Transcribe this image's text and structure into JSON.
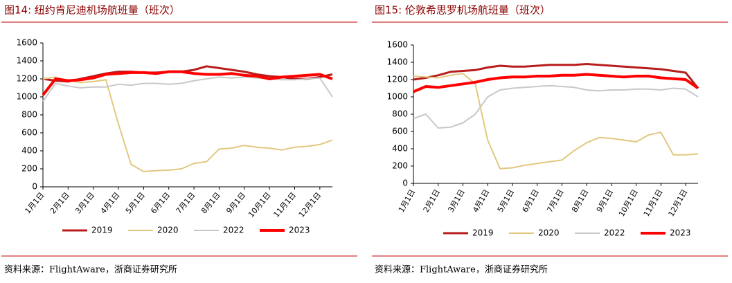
{
  "chart_data": [
    {
      "type": "line",
      "title": "图14:  纽约肯尼迪机场航班量（班次）",
      "source": "资料来源：FlightAware，浙商证券研究所",
      "categories": [
        "1月1日",
        null,
        "2月1日",
        null,
        "3月1日",
        null,
        "4月1日",
        null,
        "5月1日",
        null,
        "6月1日",
        null,
        "7月1日",
        null,
        "8月1日",
        null,
        "9月1日",
        null,
        "10月1日",
        null,
        "11月1日",
        null,
        "12月1日",
        null
      ],
      "ylim": [
        0,
        1600
      ],
      "yticks": [
        0,
        200,
        400,
        600,
        800,
        1000,
        1200,
        1400,
        1600
      ],
      "series": [
        {
          "name": "2019",
          "color": "#b81c1c",
          "values": [
            1200,
            1180,
            1170,
            1200,
            1230,
            1260,
            1280,
            1280,
            1270,
            1270,
            1280,
            1280,
            1300,
            1340,
            1320,
            1300,
            1280,
            1250,
            1230,
            1220,
            1200,
            1200,
            1220,
            1250
          ]
        },
        {
          "name": "2020",
          "color": "#e2c77e",
          "values": [
            1200,
            1220,
            1180,
            1160,
            1170,
            1190,
            700,
            250,
            170,
            180,
            185,
            200,
            260,
            280,
            420,
            430,
            460,
            440,
            430,
            410,
            440,
            450,
            470,
            520
          ]
        },
        {
          "name": "2022",
          "color": "#c8c8c8",
          "values": [
            950,
            1150,
            1120,
            1100,
            1110,
            1110,
            1140,
            1130,
            1150,
            1150,
            1140,
            1150,
            1180,
            1200,
            1220,
            1210,
            1220,
            1210,
            1200,
            1190,
            1190,
            1200,
            1210,
            1000
          ]
        },
        {
          "name": "2023",
          "color": "#ff0000",
          "values": [
            1020,
            1200,
            1180,
            1190,
            1210,
            1250,
            1260,
            1270,
            1270,
            1260,
            1280,
            1280,
            1260,
            1250,
            1250,
            1260,
            1240,
            1230,
            1200,
            1220,
            1230,
            1240,
            1250,
            1200
          ]
        }
      ]
    },
    {
      "type": "line",
      "title": "图15:  伦敦希思罗机场航班量（班次）",
      "source": "资料来源：FlightAware，浙商证券研究所",
      "categories": [
        "1月1日",
        null,
        "2月1日",
        null,
        "3月1日",
        null,
        "4月1日",
        null,
        "5月1日",
        null,
        "6月1日",
        null,
        "7月1日",
        null,
        "8月1日",
        null,
        "9月1日",
        null,
        "10月1日",
        null,
        "11月1日",
        null,
        "12月1日",
        null
      ],
      "ylim": [
        0,
        1600
      ],
      "yticks": [
        0,
        200,
        400,
        600,
        800,
        1000,
        1200,
        1400,
        1600
      ],
      "series": [
        {
          "name": "2019",
          "color": "#b81c1c",
          "values": [
            1200,
            1220,
            1250,
            1290,
            1300,
            1310,
            1340,
            1360,
            1350,
            1350,
            1360,
            1370,
            1370,
            1370,
            1380,
            1370,
            1360,
            1350,
            1340,
            1330,
            1320,
            1300,
            1280,
            1100
          ]
        },
        {
          "name": "2020",
          "color": "#e2c77e",
          "values": [
            1240,
            1230,
            1220,
            1250,
            1270,
            1150,
            500,
            170,
            180,
            210,
            230,
            250,
            270,
            380,
            470,
            530,
            520,
            500,
            480,
            560,
            590,
            330,
            330,
            340
          ]
        },
        {
          "name": "2022",
          "color": "#c8c8c8",
          "values": [
            750,
            800,
            640,
            650,
            700,
            800,
            1000,
            1080,
            1100,
            1110,
            1120,
            1130,
            1120,
            1110,
            1080,
            1070,
            1080,
            1080,
            1090,
            1090,
            1080,
            1100,
            1090,
            1000
          ]
        },
        {
          "name": "2023",
          "color": "#ff0000",
          "values": [
            1060,
            1120,
            1110,
            1130,
            1150,
            1170,
            1200,
            1220,
            1230,
            1230,
            1240,
            1240,
            1250,
            1250,
            1260,
            1250,
            1240,
            1230,
            1240,
            1240,
            1220,
            1210,
            1200,
            1100
          ]
        }
      ]
    }
  ]
}
